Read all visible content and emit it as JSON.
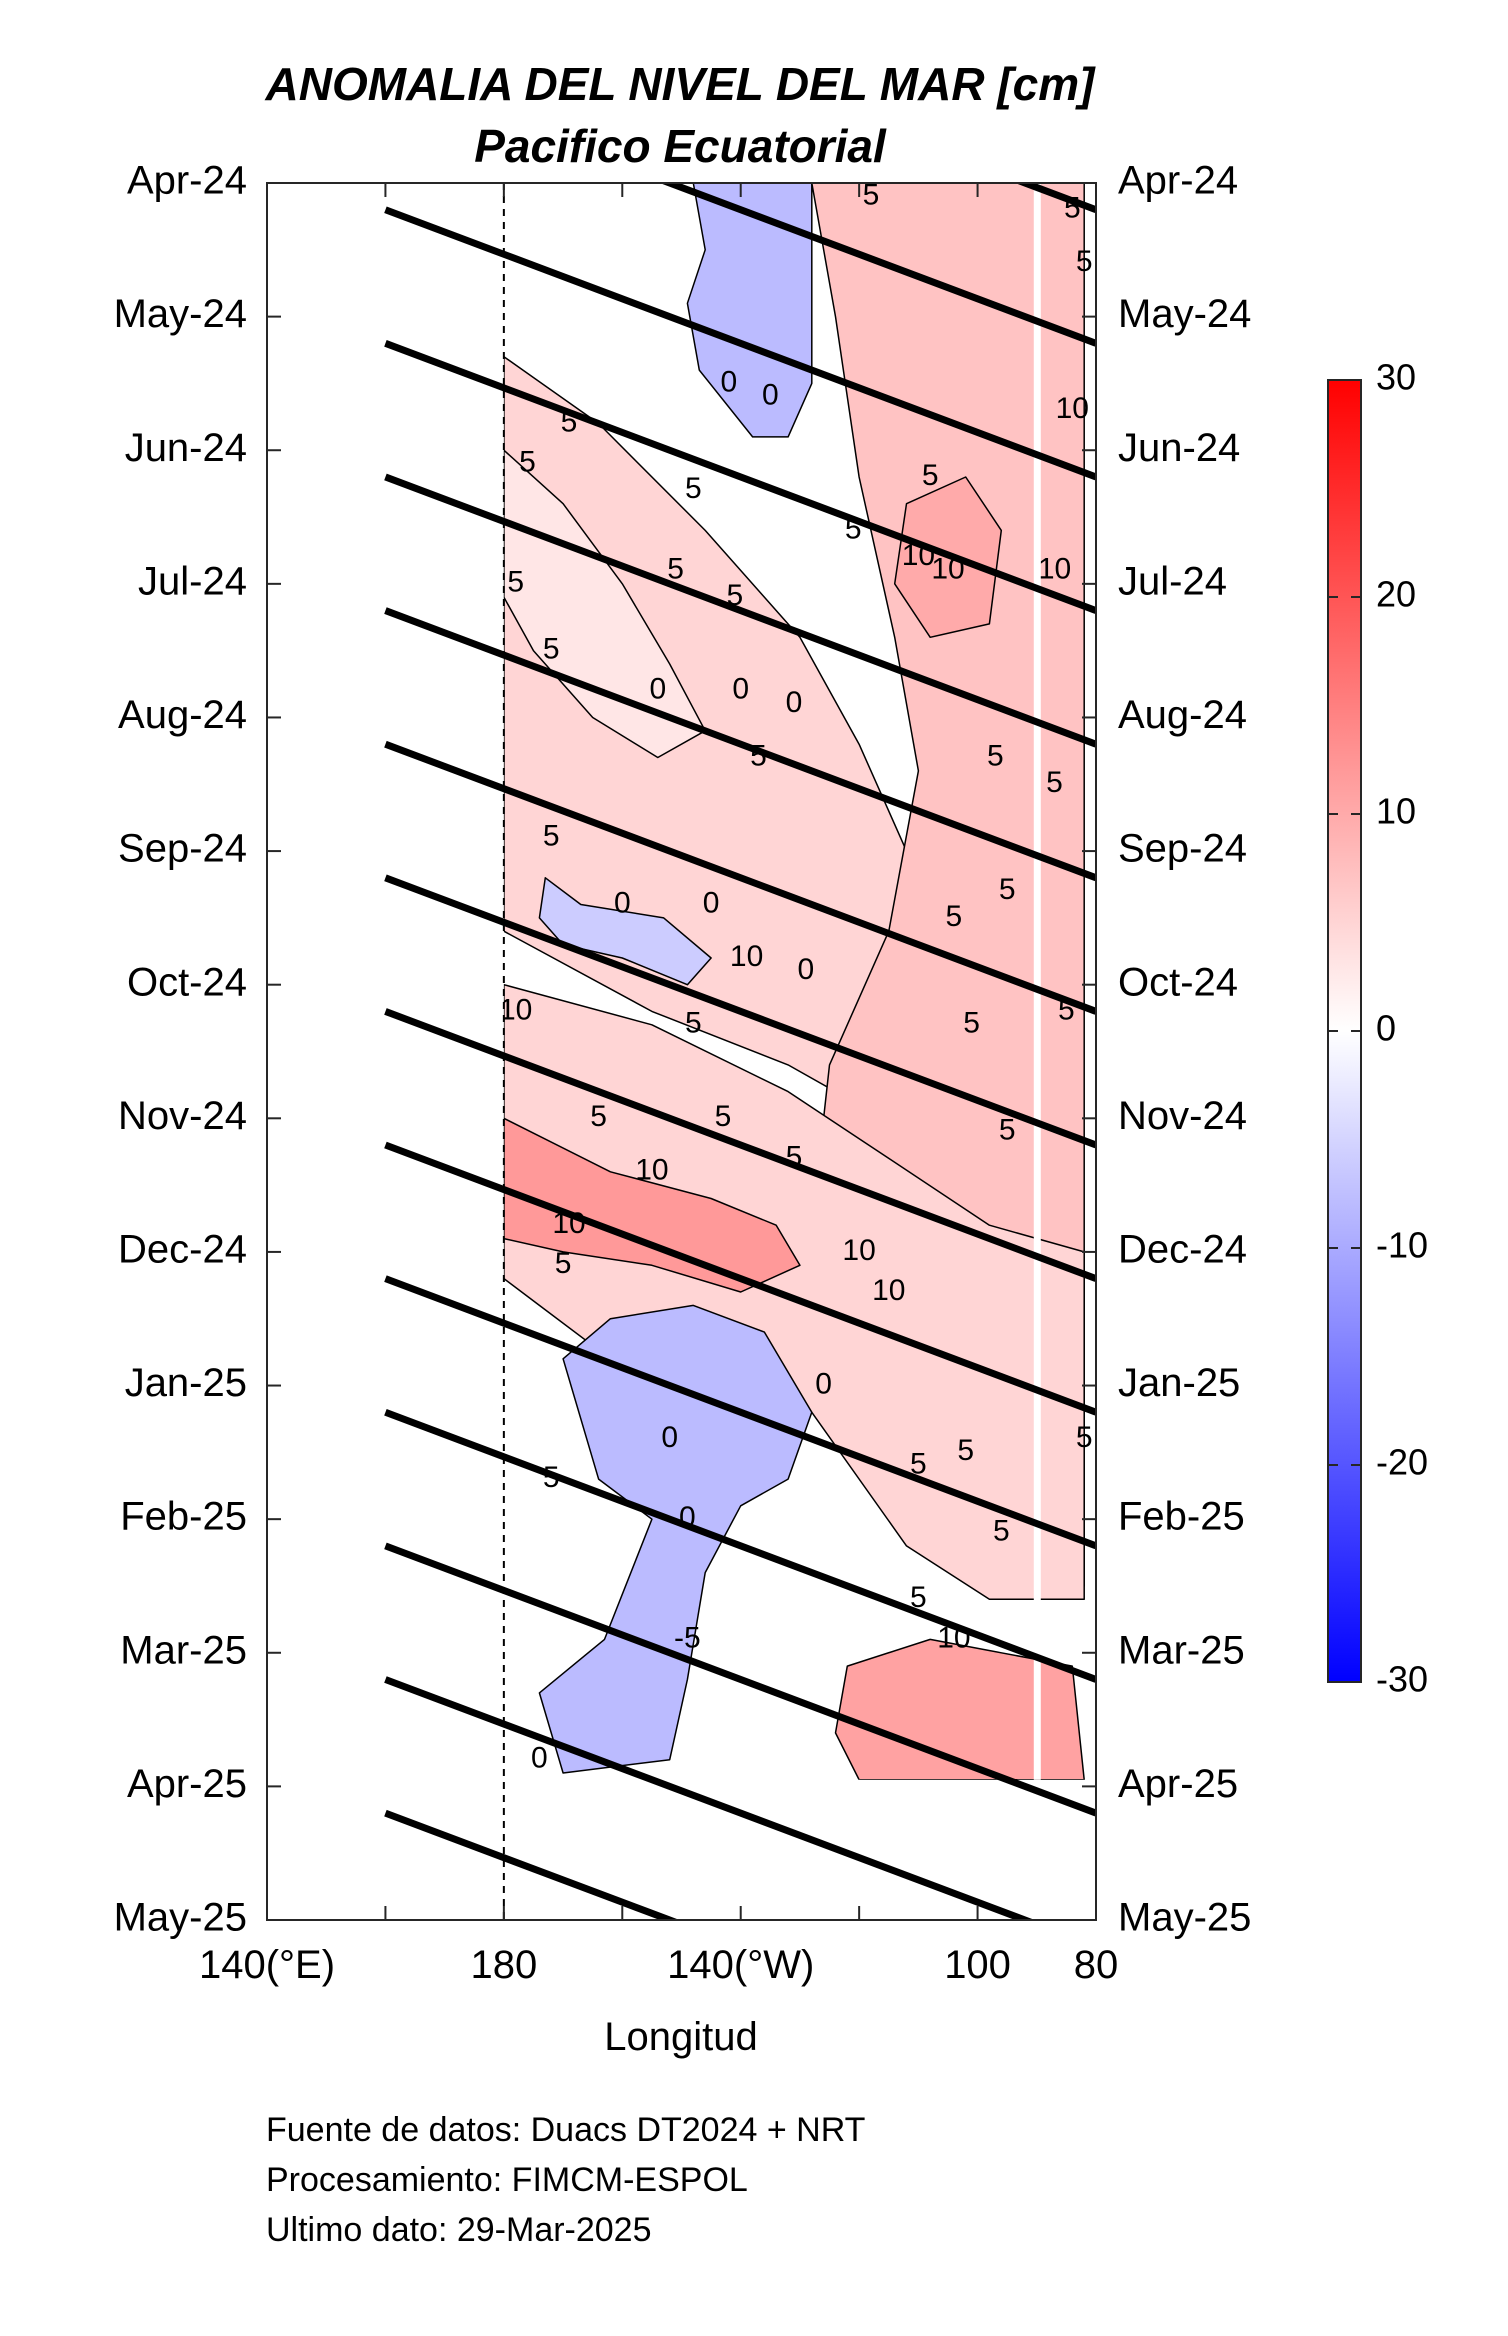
{
  "chart_data": {
    "type": "heatmap",
    "title": "ANOMALIA DEL NIVEL DEL MAR [cm]",
    "subtitle": "Pacifico Ecuatorial",
    "xlabel": "Longitud",
    "x_ticks": [
      {
        "lon": 140,
        "label": "140(°E)"
      },
      {
        "lon": 180,
        "label": "180"
      },
      {
        "lon": 220,
        "label": "140(°W)"
      },
      {
        "lon": 260,
        "label": "100"
      },
      {
        "lon": 280,
        "label": "80"
      }
    ],
    "xlim": [
      140,
      280
    ],
    "y_ticks": [
      "Apr-24",
      "May-24",
      "Jun-24",
      "Jul-24",
      "Aug-24",
      "Sep-24",
      "Oct-24",
      "Nov-24",
      "Dec-24",
      "Jan-25",
      "Feb-25",
      "Mar-25",
      "Apr-25",
      "May-25"
    ],
    "ylim_months": [
      0,
      13
    ],
    "data_end_month": 11.95,
    "data_lon_start": 180,
    "colorbar": {
      "ticks": [
        30,
        20,
        10,
        0,
        -10,
        -20,
        -30
      ],
      "min": -30,
      "max": 30,
      "colors": {
        "low": "#0000ff",
        "mid": "#ffffff",
        "high": "#ff0000"
      }
    },
    "contour_levels": [
      -10,
      -5,
      0,
      5,
      10
    ],
    "regions": [
      {
        "anomaly": -8,
        "poly": [
          [
            212,
            0
          ],
          [
            232,
            0
          ],
          [
            232,
            1.5
          ],
          [
            228,
            1.9
          ],
          [
            222,
            1.9
          ],
          [
            213,
            1.4
          ],
          [
            211,
            0.9
          ],
          [
            214,
            0.5
          ]
        ]
      },
      {
        "anomaly": 5,
        "poly": [
          [
            180,
            1.3
          ],
          [
            196,
            1.8
          ],
          [
            214,
            2.6
          ],
          [
            230,
            3.4
          ],
          [
            240,
            4.2
          ],
          [
            248,
            5.0
          ],
          [
            252,
            5.6
          ],
          [
            258,
            6.2
          ],
          [
            263,
            6.8
          ],
          [
            263,
            7.6
          ],
          [
            248,
            7.1
          ],
          [
            228,
            6.6
          ],
          [
            205,
            6.2
          ],
          [
            180,
            5.6
          ]
        ]
      },
      {
        "anomaly": 7,
        "poly": [
          [
            232,
            0
          ],
          [
            278,
            0
          ],
          [
            278,
            10.5
          ],
          [
            268,
            10.3
          ],
          [
            258,
            9.7
          ],
          [
            247,
            9.0
          ],
          [
            238,
            8.4
          ],
          [
            232,
            7.8
          ],
          [
            235,
            6.6
          ],
          [
            245,
            5.6
          ],
          [
            250,
            4.4
          ],
          [
            246,
            3.4
          ],
          [
            240,
            2.2
          ],
          [
            236,
            1.0
          ]
        ]
      },
      {
        "anomaly": 3,
        "poly": [
          [
            180,
            2.0
          ],
          [
            190,
            2.4
          ],
          [
            200,
            3.0
          ],
          [
            208,
            3.6
          ],
          [
            214,
            4.1
          ],
          [
            206,
            4.3
          ],
          [
            195,
            4.0
          ],
          [
            185,
            3.5
          ],
          [
            180,
            3.1
          ]
        ]
      },
      {
        "anomaly": -6,
        "poly": [
          [
            187,
            5.2
          ],
          [
            193,
            5.4
          ],
          [
            207,
            5.5
          ],
          [
            215,
            5.8
          ],
          [
            211,
            6.0
          ],
          [
            200,
            5.8
          ],
          [
            190,
            5.7
          ],
          [
            186,
            5.5
          ]
        ]
      },
      {
        "anomaly": 5,
        "poly": [
          [
            180,
            6.0
          ],
          [
            205,
            6.3
          ],
          [
            228,
            6.8
          ],
          [
            245,
            7.3
          ],
          [
            262,
            7.8
          ],
          [
            278,
            8.0
          ],
          [
            278,
            10.6
          ],
          [
            262,
            10.6
          ],
          [
            248,
            10.2
          ],
          [
            232,
            9.2
          ],
          [
            214,
            8.8
          ],
          [
            198,
            8.8
          ],
          [
            186,
            8.4
          ],
          [
            180,
            8.2
          ]
        ]
      },
      {
        "anomaly": 12,
        "poly": [
          [
            180,
            7.0
          ],
          [
            198,
            7.4
          ],
          [
            215,
            7.6
          ],
          [
            226,
            7.8
          ],
          [
            230,
            8.1
          ],
          [
            220,
            8.3
          ],
          [
            205,
            8.1
          ],
          [
            190,
            8.0
          ],
          [
            180,
            7.9
          ]
        ]
      },
      {
        "anomaly": 10,
        "poly": [
          [
            248,
            2.4
          ],
          [
            258,
            2.2
          ],
          [
            264,
            2.6
          ],
          [
            262,
            3.3
          ],
          [
            252,
            3.4
          ],
          [
            246,
            3.0
          ]
        ]
      },
      {
        "anomaly": -8,
        "poly": [
          [
            190,
            8.8
          ],
          [
            198,
            8.5
          ],
          [
            212,
            8.4
          ],
          [
            224,
            8.6
          ],
          [
            232,
            9.2
          ],
          [
            228,
            9.7
          ],
          [
            220,
            9.9
          ],
          [
            214,
            10.4
          ],
          [
            211,
            11.2
          ],
          [
            208,
            11.8
          ],
          [
            190,
            11.9
          ],
          [
            186,
            11.3
          ],
          [
            197,
            10.9
          ],
          [
            205,
            10.0
          ],
          [
            196,
            9.7
          ]
        ]
      },
      {
        "anomaly": 11,
        "poly": [
          [
            238,
            11.1
          ],
          [
            252,
            10.9
          ],
          [
            264,
            11.0
          ],
          [
            276,
            11.1
          ],
          [
            278,
            11.95
          ],
          [
            240,
            11.95
          ],
          [
            236,
            11.6
          ]
        ]
      }
    ],
    "contour_labels": [
      {
        "lon": 242,
        "month": 0.1,
        "text": "5"
      },
      {
        "lon": 276,
        "month": 0.2,
        "text": "5"
      },
      {
        "lon": 278,
        "month": 0.6,
        "text": "5"
      },
      {
        "lon": 218,
        "month": 1.5,
        "text": "0"
      },
      {
        "lon": 225,
        "month": 1.6,
        "text": "0"
      },
      {
        "lon": 276,
        "month": 1.7,
        "text": "10"
      },
      {
        "lon": 191,
        "month": 1.8,
        "text": "5"
      },
      {
        "lon": 184,
        "month": 2.1,
        "text": "5"
      },
      {
        "lon": 212,
        "month": 2.3,
        "text": "5"
      },
      {
        "lon": 252,
        "month": 2.2,
        "text": "5"
      },
      {
        "lon": 239,
        "month": 2.6,
        "text": "5"
      },
      {
        "lon": 250,
        "month": 2.8,
        "text": "10"
      },
      {
        "lon": 255,
        "month": 2.9,
        "text": "10"
      },
      {
        "lon": 273,
        "month": 2.9,
        "text": "10"
      },
      {
        "lon": 209,
        "month": 2.9,
        "text": "5"
      },
      {
        "lon": 182,
        "month": 3.0,
        "text": "5"
      },
      {
        "lon": 219,
        "month": 3.1,
        "text": "5"
      },
      {
        "lon": 188,
        "month": 3.5,
        "text": "5"
      },
      {
        "lon": 206,
        "month": 3.8,
        "text": "0"
      },
      {
        "lon": 220,
        "month": 3.8,
        "text": "0"
      },
      {
        "lon": 229,
        "month": 3.9,
        "text": "0"
      },
      {
        "lon": 263,
        "month": 4.3,
        "text": "5"
      },
      {
        "lon": 223,
        "month": 4.3,
        "text": "5"
      },
      {
        "lon": 273,
        "month": 4.5,
        "text": "5"
      },
      {
        "lon": 188,
        "month": 4.9,
        "text": "5"
      },
      {
        "lon": 200,
        "month": 5.4,
        "text": "0"
      },
      {
        "lon": 215,
        "month": 5.4,
        "text": "0"
      },
      {
        "lon": 221,
        "month": 5.8,
        "text": "10"
      },
      {
        "lon": 231,
        "month": 5.9,
        "text": "0"
      },
      {
        "lon": 265,
        "month": 5.3,
        "text": "5"
      },
      {
        "lon": 256,
        "month": 5.5,
        "text": "5"
      },
      {
        "lon": 182,
        "month": 6.2,
        "text": "10"
      },
      {
        "lon": 212,
        "month": 6.3,
        "text": "5"
      },
      {
        "lon": 259,
        "month": 6.3,
        "text": "5"
      },
      {
        "lon": 275,
        "month": 6.2,
        "text": "5"
      },
      {
        "lon": 196,
        "month": 7.0,
        "text": "5"
      },
      {
        "lon": 217,
        "month": 7.0,
        "text": "5"
      },
      {
        "lon": 229,
        "month": 7.3,
        "text": "5"
      },
      {
        "lon": 265,
        "month": 7.1,
        "text": "5"
      },
      {
        "lon": 205,
        "month": 7.4,
        "text": "10"
      },
      {
        "lon": 191,
        "month": 7.8,
        "text": "10"
      },
      {
        "lon": 240,
        "month": 8.0,
        "text": "10"
      },
      {
        "lon": 190,
        "month": 8.1,
        "text": "5"
      },
      {
        "lon": 245,
        "month": 8.3,
        "text": "10"
      },
      {
        "lon": 234,
        "month": 9.0,
        "text": "0"
      },
      {
        "lon": 208,
        "month": 9.4,
        "text": "0"
      },
      {
        "lon": 250,
        "month": 9.6,
        "text": "5"
      },
      {
        "lon": 258,
        "month": 9.5,
        "text": "5"
      },
      {
        "lon": 278,
        "month": 9.4,
        "text": "5"
      },
      {
        "lon": 188,
        "month": 9.7,
        "text": "5"
      },
      {
        "lon": 211,
        "month": 10.0,
        "text": "0"
      },
      {
        "lon": 264,
        "month": 10.1,
        "text": "5"
      },
      {
        "lon": 250,
        "month": 10.6,
        "text": "5"
      },
      {
        "lon": 256,
        "month": 10.9,
        "text": "10"
      },
      {
        "lon": 211,
        "month": 10.9,
        "text": "-5"
      },
      {
        "lon": 186,
        "month": 11.8,
        "text": "0"
      }
    ],
    "propagation_lines": {
      "lon_start": 160,
      "lon_end": 280,
      "month_span": 2.0,
      "start_months": [
        -1.8,
        -0.8,
        0.2,
        1.2,
        2.2,
        3.2,
        4.2,
        5.2,
        6.2,
        7.2,
        8.2,
        9.2,
        10.2,
        11.2,
        12.2
      ]
    },
    "reference_line_lon": 180,
    "gap_lon": 270
  },
  "footer": {
    "line1": "Fuente de datos: Duacs DT2024 + NRT",
    "line2": "Procesamiento: FIMCM-ESPOL",
    "line3": "Ultimo dato: 29-Mar-2025"
  }
}
